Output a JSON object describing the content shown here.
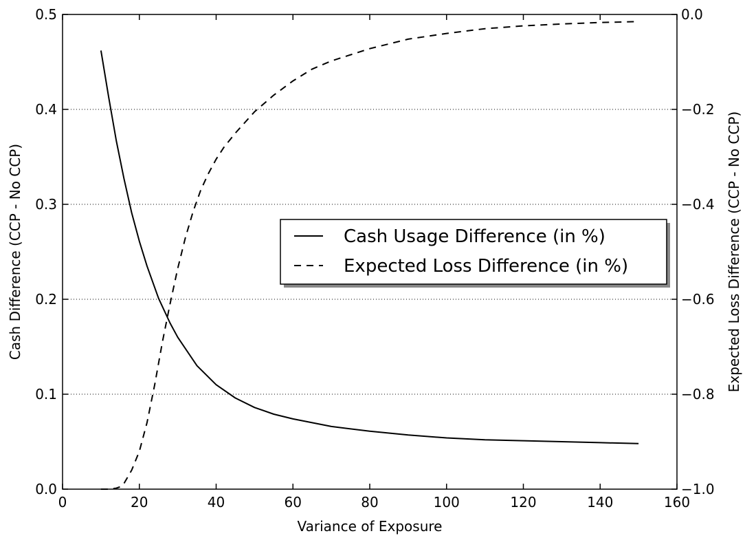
{
  "chart_data": {
    "type": "line",
    "xlabel": "Variance of Exposure",
    "ylabel_left": "Cash Difference (CCP - No CCP)",
    "ylabel_right": "Expected Loss Difference (CCP - No CCP)",
    "xlim": [
      0,
      160
    ],
    "ylim_left": [
      0.0,
      0.5
    ],
    "ylim_right": [
      -1.0,
      0.0
    ],
    "x_ticks": [
      0,
      20,
      40,
      60,
      80,
      100,
      120,
      140,
      160
    ],
    "x_tick_labels": [
      "0",
      "20",
      "40",
      "60",
      "80",
      "100",
      "120",
      "140",
      "160"
    ],
    "y_left_ticks": [
      0.0,
      0.1,
      0.2,
      0.3,
      0.4,
      0.5
    ],
    "y_left_tick_labels": [
      "0.0",
      "0.1",
      "0.2",
      "0.3",
      "0.4",
      "0.5"
    ],
    "y_right_ticks": [
      -1.0,
      -0.8,
      -0.6,
      -0.4,
      -0.2,
      0.0
    ],
    "y_right_tick_labels": [
      "−1.0",
      "−0.8",
      "−0.6",
      "−0.4",
      "−0.2",
      "0.0"
    ],
    "grid": "horizontal dotted",
    "legend_position": "center-right",
    "series": [
      {
        "name": "Cash Usage Difference (in %)",
        "axis": "left",
        "style": "solid",
        "color": "#000000",
        "x": [
          10,
          12,
          14,
          16,
          18,
          20,
          22,
          25,
          28,
          30,
          35,
          40,
          45,
          50,
          55,
          60,
          70,
          80,
          90,
          100,
          110,
          120,
          130,
          140,
          150
        ],
        "y": [
          0.462,
          0.413,
          0.367,
          0.327,
          0.291,
          0.261,
          0.235,
          0.201,
          0.175,
          0.16,
          0.13,
          0.11,
          0.096,
          0.086,
          0.079,
          0.074,
          0.066,
          0.061,
          0.057,
          0.054,
          0.052,
          0.051,
          0.05,
          0.049,
          0.048
        ]
      },
      {
        "name": "Expected Loss Difference (in %)",
        "axis": "right",
        "style": "dashed",
        "color": "#000000",
        "x": [
          10,
          12,
          14,
          15,
          16,
          18,
          20,
          22,
          24,
          26,
          28,
          30,
          32,
          34,
          36,
          38,
          40,
          42,
          45,
          50,
          55,
          60,
          65,
          70,
          80,
          90,
          100,
          110,
          120,
          130,
          140,
          150
        ],
        "y": [
          -1.0,
          -1.0,
          -0.998,
          -0.995,
          -0.988,
          -0.96,
          -0.92,
          -0.86,
          -0.78,
          -0.69,
          -0.61,
          -0.535,
          -0.47,
          -0.415,
          -0.37,
          -0.335,
          -0.305,
          -0.28,
          -0.25,
          -0.205,
          -0.17,
          -0.14,
          -0.115,
          -0.098,
          -0.072,
          -0.052,
          -0.04,
          -0.03,
          -0.024,
          -0.02,
          -0.017,
          -0.015
        ]
      }
    ]
  }
}
